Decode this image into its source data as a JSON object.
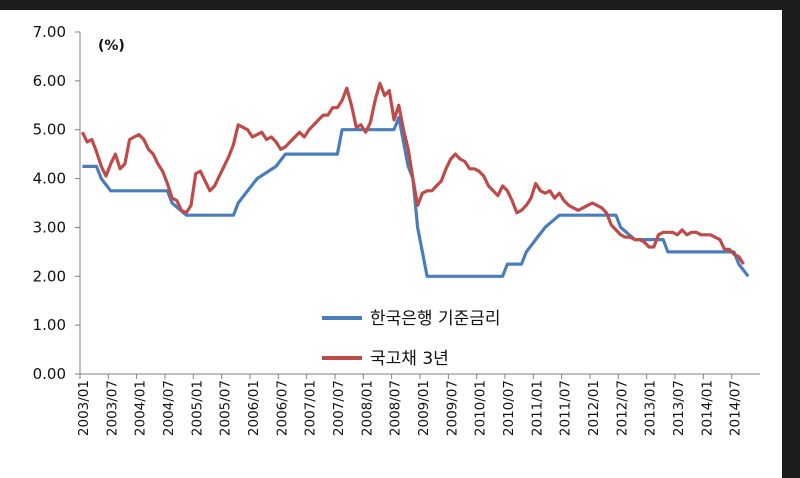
{
  "chart_data": {
    "type": "line",
    "unit_label": "(%)",
    "ylim": [
      0,
      7
    ],
    "y_ticks": [
      "0.00",
      "1.00",
      "2.00",
      "3.00",
      "4.00",
      "5.00",
      "6.00",
      "7.00"
    ],
    "x_ticks": [
      "2003/01",
      "2003/07",
      "2004/01",
      "2004/07",
      "2005/01",
      "2005/07",
      "2006/01",
      "2006/07",
      "2007/01",
      "2007/07",
      "2008/01",
      "2008/07",
      "2009/01",
      "2009/07",
      "2010/01",
      "2010/07",
      "2011/01",
      "2011/07",
      "2012/01",
      "2012/07",
      "2013/01",
      "2013/07",
      "2014/01",
      "2014/07"
    ],
    "legend_position": "center",
    "series": [
      {
        "name": "한국은행 기준금리",
        "color": "#4a7ebb",
        "points": [
          [
            "2003/01",
            4.25
          ],
          [
            "2003/04",
            4.25
          ],
          [
            "2003/05",
            4.0
          ],
          [
            "2003/07",
            3.75
          ],
          [
            "2004/07",
            3.75
          ],
          [
            "2004/08",
            3.5
          ],
          [
            "2004/11",
            3.25
          ],
          [
            "2005/09",
            3.25
          ],
          [
            "2005/10",
            3.5
          ],
          [
            "2005/12",
            3.75
          ],
          [
            "2006/02",
            4.0
          ],
          [
            "2006/06",
            4.25
          ],
          [
            "2006/08",
            4.5
          ],
          [
            "2007/07",
            4.5
          ],
          [
            "2007/08",
            5.0
          ],
          [
            "2008/07",
            5.0
          ],
          [
            "2008/08",
            5.25
          ],
          [
            "2008/10",
            4.25
          ],
          [
            "2008/11",
            4.0
          ],
          [
            "2008/12",
            3.0
          ],
          [
            "2009/01",
            2.5
          ],
          [
            "2009/02",
            2.0
          ],
          [
            "2010/06",
            2.0
          ],
          [
            "2010/07",
            2.25
          ],
          [
            "2010/10",
            2.25
          ],
          [
            "2010/11",
            2.5
          ],
          [
            "2011/01",
            2.75
          ],
          [
            "2011/03",
            3.0
          ],
          [
            "2011/06",
            3.25
          ],
          [
            "2012/06",
            3.25
          ],
          [
            "2012/07",
            3.0
          ],
          [
            "2012/10",
            2.75
          ],
          [
            "2013/04",
            2.75
          ],
          [
            "2013/05",
            2.5
          ],
          [
            "2014/07",
            2.5
          ],
          [
            "2014/08",
            2.25
          ],
          [
            "2014/10",
            2.0
          ]
        ]
      },
      {
        "name": "국고채 3년",
        "color": "#be4b48",
        "points": [
          [
            "2003/01",
            4.95
          ],
          [
            "2003/02",
            4.75
          ],
          [
            "2003/03",
            4.8
          ],
          [
            "2003/04",
            4.55
          ],
          [
            "2003/05",
            4.25
          ],
          [
            "2003/06",
            4.05
          ],
          [
            "2003/07",
            4.3
          ],
          [
            "2003/08",
            4.5
          ],
          [
            "2003/09",
            4.2
          ],
          [
            "2003/10",
            4.3
          ],
          [
            "2003/11",
            4.8
          ],
          [
            "2003/12",
            4.85
          ],
          [
            "2004/01",
            4.9
          ],
          [
            "2004/02",
            4.8
          ],
          [
            "2004/03",
            4.6
          ],
          [
            "2004/04",
            4.5
          ],
          [
            "2004/05",
            4.3
          ],
          [
            "2004/06",
            4.15
          ],
          [
            "2004/07",
            3.9
          ],
          [
            "2004/08",
            3.6
          ],
          [
            "2004/09",
            3.55
          ],
          [
            "2004/10",
            3.35
          ],
          [
            "2004/11",
            3.3
          ],
          [
            "2004/12",
            3.45
          ],
          [
            "2005/01",
            4.1
          ],
          [
            "2005/02",
            4.15
          ],
          [
            "2005/03",
            3.95
          ],
          [
            "2005/04",
            3.75
          ],
          [
            "2005/05",
            3.85
          ],
          [
            "2005/06",
            4.05
          ],
          [
            "2005/07",
            4.25
          ],
          [
            "2005/08",
            4.45
          ],
          [
            "2005/09",
            4.7
          ],
          [
            "2005/10",
            5.1
          ],
          [
            "2005/11",
            5.05
          ],
          [
            "2005/12",
            5.0
          ],
          [
            "2006/01",
            4.85
          ],
          [
            "2006/02",
            4.9
          ],
          [
            "2006/03",
            4.95
          ],
          [
            "2006/04",
            4.8
          ],
          [
            "2006/05",
            4.85
          ],
          [
            "2006/06",
            4.75
          ],
          [
            "2006/07",
            4.6
          ],
          [
            "2006/08",
            4.65
          ],
          [
            "2006/09",
            4.75
          ],
          [
            "2006/10",
            4.85
          ],
          [
            "2006/11",
            4.95
          ],
          [
            "2006/12",
            4.85
          ],
          [
            "2007/01",
            5.0
          ],
          [
            "2007/02",
            5.1
          ],
          [
            "2007/03",
            5.2
          ],
          [
            "2007/04",
            5.3
          ],
          [
            "2007/05",
            5.3
          ],
          [
            "2007/06",
            5.45
          ],
          [
            "2007/07",
            5.45
          ],
          [
            "2007/08",
            5.6
          ],
          [
            "2007/09",
            5.85
          ],
          [
            "2007/10",
            5.5
          ],
          [
            "2007/11",
            5.05
          ],
          [
            "2007/12",
            5.1
          ],
          [
            "2008/01",
            4.95
          ],
          [
            "2008/02",
            5.15
          ],
          [
            "2008/03",
            5.6
          ],
          [
            "2008/04",
            5.95
          ],
          [
            "2008/05",
            5.7
          ],
          [
            "2008/06",
            5.8
          ],
          [
            "2008/07",
            5.2
          ],
          [
            "2008/08",
            5.5
          ],
          [
            "2008/09",
            5.0
          ],
          [
            "2008/10",
            4.6
          ],
          [
            "2008/11",
            4.0
          ],
          [
            "2008/12",
            3.45
          ],
          [
            "2009/01",
            3.7
          ],
          [
            "2009/02",
            3.75
          ],
          [
            "2009/03",
            3.75
          ],
          [
            "2009/04",
            3.85
          ],
          [
            "2009/05",
            3.95
          ],
          [
            "2009/06",
            4.2
          ],
          [
            "2009/07",
            4.4
          ],
          [
            "2009/08",
            4.5
          ],
          [
            "2009/09",
            4.4
          ],
          [
            "2009/10",
            4.35
          ],
          [
            "2009/11",
            4.2
          ],
          [
            "2009/12",
            4.2
          ],
          [
            "2010/01",
            4.15
          ],
          [
            "2010/02",
            4.05
          ],
          [
            "2010/03",
            3.85
          ],
          [
            "2010/04",
            3.75
          ],
          [
            "2010/05",
            3.65
          ],
          [
            "2010/06",
            3.85
          ],
          [
            "2010/07",
            3.75
          ],
          [
            "2010/08",
            3.55
          ],
          [
            "2010/09",
            3.3
          ],
          [
            "2010/10",
            3.35
          ],
          [
            "2010/11",
            3.45
          ],
          [
            "2010/12",
            3.6
          ],
          [
            "2011/01",
            3.9
          ],
          [
            "2011/02",
            3.75
          ],
          [
            "2011/03",
            3.7
          ],
          [
            "2011/04",
            3.75
          ],
          [
            "2011/05",
            3.6
          ],
          [
            "2011/06",
            3.7
          ],
          [
            "2011/07",
            3.55
          ],
          [
            "2011/08",
            3.45
          ],
          [
            "2011/09",
            3.4
          ],
          [
            "2011/10",
            3.35
          ],
          [
            "2011/11",
            3.4
          ],
          [
            "2011/12",
            3.45
          ],
          [
            "2012/01",
            3.5
          ],
          [
            "2012/02",
            3.45
          ],
          [
            "2012/03",
            3.4
          ],
          [
            "2012/04",
            3.3
          ],
          [
            "2012/05",
            3.05
          ],
          [
            "2012/06",
            2.95
          ],
          [
            "2012/07",
            2.85
          ],
          [
            "2012/08",
            2.8
          ],
          [
            "2012/09",
            2.8
          ],
          [
            "2012/10",
            2.75
          ],
          [
            "2012/11",
            2.75
          ],
          [
            "2012/12",
            2.7
          ],
          [
            "2013/01",
            2.6
          ],
          [
            "2013/02",
            2.6
          ],
          [
            "2013/03",
            2.85
          ],
          [
            "2013/04",
            2.9
          ],
          [
            "2013/05",
            2.9
          ],
          [
            "2013/06",
            2.9
          ],
          [
            "2013/07",
            2.85
          ],
          [
            "2013/08",
            2.95
          ],
          [
            "2013/09",
            2.85
          ],
          [
            "2013/10",
            2.9
          ],
          [
            "2013/11",
            2.9
          ],
          [
            "2013/12",
            2.85
          ],
          [
            "2014/01",
            2.85
          ],
          [
            "2014/02",
            2.85
          ],
          [
            "2014/03",
            2.8
          ],
          [
            "2014/04",
            2.75
          ],
          [
            "2014/05",
            2.55
          ],
          [
            "2014/06",
            2.55
          ],
          [
            "2014/07",
            2.45
          ],
          [
            "2014/08",
            2.4
          ],
          [
            "2014/09",
            2.25
          ]
        ]
      }
    ]
  }
}
